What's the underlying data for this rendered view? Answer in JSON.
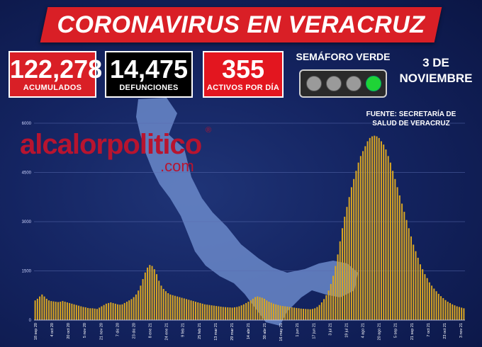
{
  "header": {
    "title": "CORONAVIRUS EN VERACRUZ"
  },
  "stats": {
    "acumulados": {
      "value": "122,278",
      "label": "ACUMULADOS"
    },
    "defunciones": {
      "value": "14,475",
      "label": "DEFUNCIONES"
    },
    "activos": {
      "value": "355",
      "label": "ACTIVOS POR DÍA"
    }
  },
  "semaforo": {
    "title": "SEMÁFORO VERDE",
    "active_light": "green",
    "colors": {
      "off": "#9a9a9a",
      "on": "#1fd336"
    }
  },
  "date": {
    "line1": "3 DE",
    "line2": "NOVIEMBRE"
  },
  "source": {
    "line1": "FUENTE: SECRETARÍA DE",
    "line2": "SALUD DE VERACRUZ"
  },
  "logo": {
    "word": "alcalorpolitico",
    "domain": ".com",
    "mark": "®"
  },
  "colors": {
    "brand_red": "#d91f26",
    "bar": "#d9a623",
    "background": "#142461",
    "map": "#6f8fd0"
  },
  "chart_data": {
    "type": "bar",
    "ylim": [
      0,
      6000
    ],
    "yticks": [
      "6000",
      "4500",
      "3000",
      "1500",
      "0"
    ],
    "ytick_values": [
      6000,
      4500,
      3000,
      1500,
      0
    ],
    "xtick_labels": [
      "18 sep 20",
      "4 oct 20",
      "20 oct 20",
      "5 nov 20",
      "21 nov 20",
      "7 dic 20",
      "23 dic 20",
      "8 ene 21",
      "24 ene 21",
      "9 feb 21",
      "25 feb 21",
      "13 mar 21",
      "29 mar 21",
      "14 abr 21",
      "30 abr 21",
      "16 may 21",
      "1 jun 21",
      "17 jun 21",
      "3 jul 21",
      "19 jul 21",
      "4 ago 21",
      "20 ago 21",
      "5 sep 21",
      "21 sep 21",
      "7 oct 21",
      "23 oct 21",
      "3 nov 21"
    ],
    "values": [
      600,
      650,
      720,
      780,
      720,
      650,
      600,
      580,
      570,
      560,
      550,
      560,
      580,
      560,
      540,
      520,
      500,
      480,
      460,
      440,
      420,
      400,
      390,
      370,
      360,
      360,
      350,
      340,
      380,
      420,
      460,
      500,
      520,
      540,
      520,
      500,
      480,
      470,
      480,
      520,
      560,
      600,
      640,
      700,
      780,
      900,
      1050,
      1250,
      1450,
      1600,
      1680,
      1650,
      1550,
      1400,
      1200,
      1050,
      950,
      880,
      820,
      780,
      760,
      740,
      720,
      700,
      680,
      660,
      640,
      620,
      600,
      580,
      560,
      540,
      520,
      500,
      480,
      470,
      460,
      450,
      440,
      430,
      420,
      410,
      400,
      395,
      390,
      385,
      380,
      390,
      400,
      420,
      450,
      480,
      520,
      560,
      600,
      650,
      700,
      720,
      700,
      680,
      650,
      600,
      560,
      530,
      500,
      480,
      460,
      440,
      430,
      420,
      410,
      400,
      390,
      380,
      370,
      360,
      350,
      345,
      340,
      335,
      330,
      340,
      360,
      400,
      460,
      540,
      640,
      760,
      900,
      1100,
      1350,
      1650,
      2000,
      2400,
      2800,
      3150,
      3450,
      3750,
      4050,
      4300,
      4550,
      4800,
      5000,
      5150,
      5300,
      5450,
      5550,
      5600,
      5620,
      5600,
      5550,
      5450,
      5350,
      5200,
      5000,
      4800,
      4550,
      4300,
      4050,
      3800,
      3550,
      3300,
      3050,
      2800,
      2550,
      2300,
      2100,
      1900,
      1700,
      1550,
      1400,
      1280,
      1150,
      1050,
      960,
      880,
      800,
      730,
      670,
      610,
      560,
      520,
      480,
      450,
      420,
      400,
      380,
      360
    ]
  }
}
